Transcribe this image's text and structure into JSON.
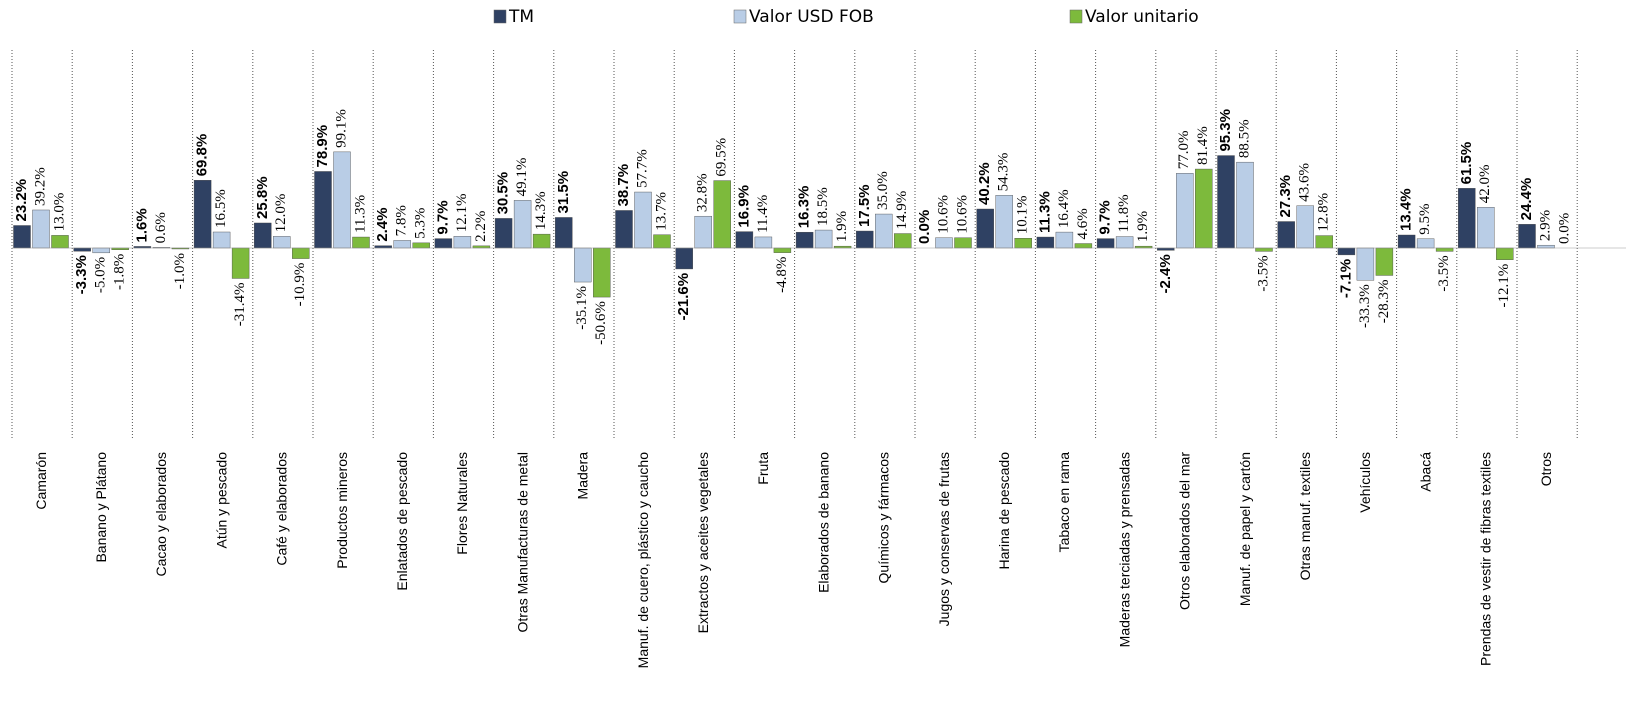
{
  "chart_data": {
    "type": "bar",
    "categories": [
      "Camarón",
      "Banano y Plátano",
      "Cacao y elaborados",
      "Atún y pescado",
      "Café y elaborados",
      "Productos mineros",
      "Enlatados de pescado",
      "Flores Naturales",
      "Otras Manufacturas de metal",
      "Madera",
      "Manuf. de cuero, plástico y caucho",
      "Extractos y aceites vegetales",
      "Fruta",
      "Elaborados de banano",
      "Químicos y fármacos",
      "Jugos y conservas de frutas",
      "Harina de pescado",
      "Tabaco en rama",
      "Maderas terciadas y prensadas",
      "Otros elaborados del mar",
      "Manuf. de papel y cartón",
      "Otras manuf. textiles",
      "Vehículos",
      "Abacá",
      "Prendas de vestir de fibras textiles",
      "Otros"
    ],
    "series": [
      {
        "name": "TM",
        "color": "#2f4163",
        "values": [
          23.2,
          -3.3,
          1.6,
          69.8,
          25.8,
          78.9,
          2.4,
          9.7,
          30.5,
          31.5,
          38.7,
          -21.6,
          16.9,
          16.3,
          17.5,
          0.0,
          40.2,
          11.3,
          9.7,
          -2.4,
          95.3,
          27.3,
          -7.1,
          13.4,
          61.5,
          24.4
        ],
        "value_labels": [
          "23.2%",
          "-3.3%",
          "1.6%",
          "69.8%",
          "25.8%",
          "78.9%",
          "2.4%",
          "9.7%",
          "30.5%",
          "31.5%",
          "38.7%",
          "-21.6%",
          "16.9%",
          "16.3%",
          "17.5%",
          "0.0%",
          "40.2%",
          "11.3%",
          "9.7%",
          "-2.4%",
          "95.3%",
          "27.3%",
          "-7.1%",
          "13.4%",
          "61.5%",
          "24.4%"
        ]
      },
      {
        "name": "Valor USD FOB",
        "color": "#b9cde6",
        "values": [
          39.2,
          -5.0,
          0.6,
          16.5,
          12.0,
          99.1,
          7.8,
          12.1,
          49.1,
          -35.1,
          57.7,
          32.8,
          11.4,
          18.5,
          35.0,
          10.6,
          54.3,
          16.4,
          11.8,
          77.0,
          88.5,
          43.6,
          -33.3,
          9.5,
          42.0,
          2.9
        ],
        "value_labels": [
          "39.2%",
          "-5.0%",
          "0.6%",
          "16.5%",
          "12.0%",
          "99.1%",
          "7.8%",
          "12.1%",
          "49.1%",
          "-35.1%",
          "57.7%",
          "32.8%",
          "11.4%",
          "18.5%",
          "35.0%",
          "10.6%",
          "54.3%",
          "16.4%",
          "11.8%",
          "77.0%",
          "88.5%",
          "43.6%",
          "-33.3%",
          "9.5%",
          "42.0%",
          "2.9%"
        ]
      },
      {
        "name": "Valor unitario",
        "color": "#7dba3c",
        "values": [
          13.0,
          -1.8,
          -1.0,
          -31.4,
          -10.9,
          11.3,
          5.3,
          2.2,
          14.3,
          -50.6,
          13.7,
          69.5,
          -4.8,
          1.9,
          14.9,
          10.6,
          10.1,
          4.6,
          1.9,
          81.4,
          -3.5,
          12.8,
          -28.3,
          -3.5,
          -12.1,
          0.0
        ],
        "value_labels": [
          "13.0%",
          "-1.8%",
          "-1.0%",
          "-31.4%",
          "-10.9%",
          "11.3%",
          "5.3%",
          "2.2%",
          "14.3%",
          "-50.6%",
          "13.7%",
          "69.5%",
          "-4.8%",
          "1.9%",
          "14.9%",
          "10.6%",
          "10.1%",
          "4.6%",
          "1.9%",
          "81.4%",
          "-3.5%",
          "12.8%",
          "-28.3%",
          "-3.5%",
          "-12.1%",
          "0.0%"
        ]
      }
    ]
  }
}
